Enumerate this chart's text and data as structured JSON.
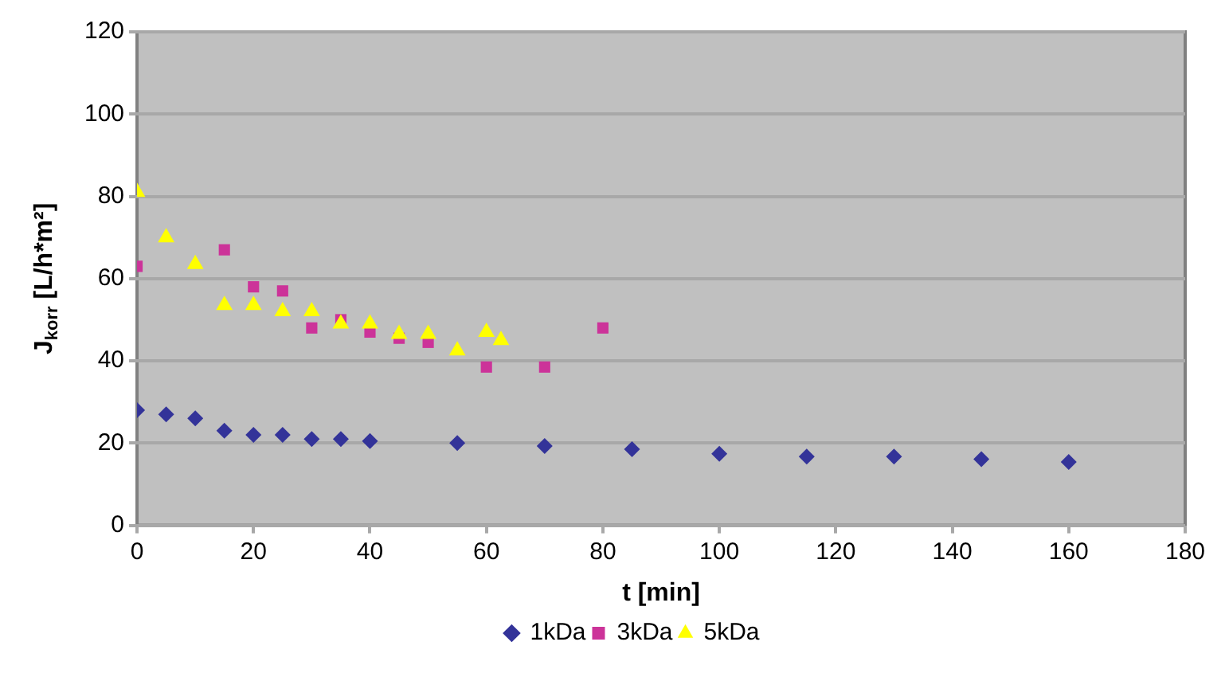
{
  "chart_data": {
    "type": "scatter",
    "xlabel": "t [min]",
    "ylabel": "J$_{korr}$ [L/h*m²]",
    "xlim": [
      0,
      180
    ],
    "xticks": [
      0,
      20,
      40,
      60,
      80,
      100,
      120,
      140,
      160,
      180
    ],
    "ylim": [
      0,
      120
    ],
    "yticks": [
      0,
      20,
      40,
      60,
      80,
      100,
      120
    ],
    "grid": "y",
    "legend": "bottom",
    "series": [
      {
        "name": "1kDa",
        "color": "#333399",
        "marker": "diamond",
        "x": [
          0,
          5,
          10,
          15,
          20,
          25,
          30,
          35,
          40,
          55,
          70,
          85,
          100,
          115,
          130,
          145,
          160
        ],
        "values": [
          28,
          27,
          26,
          23,
          22,
          22,
          21,
          21,
          20.5,
          20,
          19.3,
          18.5,
          17.4,
          16.7,
          16.7,
          16.1,
          15.4
        ]
      },
      {
        "name": "3kDa",
        "color": "#cc3399",
        "marker": "square",
        "x": [
          0,
          15,
          20,
          25,
          30,
          35,
          40,
          45,
          50,
          60,
          70,
          80
        ],
        "values": [
          63,
          67,
          58,
          57,
          48,
          50,
          47,
          45.5,
          44.5,
          38.5,
          38.5,
          48
        ]
      },
      {
        "name": "5kDa",
        "color": "#ffff00",
        "marker": "triangle",
        "x": [
          0,
          5,
          10,
          15,
          20,
          25,
          30,
          35,
          40,
          45,
          50,
          55,
          60,
          62.5
        ],
        "values": [
          81,
          70,
          63.5,
          53.5,
          53.5,
          52,
          52,
          49,
          49,
          46.5,
          46.5,
          42.5,
          47,
          45
        ]
      }
    ]
  }
}
